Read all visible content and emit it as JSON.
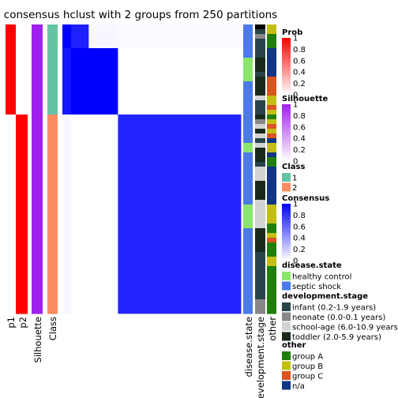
{
  "chart_data": {
    "type": "heatmap",
    "title": "consensus hclust with 2 groups from 250 partitions",
    "n_samples": 61,
    "groups": [
      {
        "class": "1",
        "count": 19
      },
      {
        "class": "2",
        "count": 42
      }
    ],
    "row_annotations": [
      {
        "label": "p1",
        "values": [
          1,
          1,
          1,
          1,
          1,
          1,
          1,
          1,
          1,
          1,
          1,
          1,
          1,
          1,
          1,
          1,
          1,
          1,
          1,
          0,
          0,
          0,
          0,
          0,
          0,
          0,
          0,
          0,
          0,
          0,
          0,
          0,
          0,
          0,
          0,
          0,
          0,
          0,
          0,
          0,
          0,
          0,
          0,
          0,
          0,
          0,
          0,
          0,
          0,
          0,
          0,
          0,
          0,
          0,
          0,
          0,
          0,
          0,
          0,
          0,
          0
        ]
      },
      {
        "label": "p2",
        "values": [
          0,
          0,
          0,
          0,
          0,
          0,
          0,
          0,
          0,
          0,
          0,
          0,
          0,
          0,
          0,
          0,
          0,
          0,
          0,
          1,
          1,
          1,
          1,
          1,
          1,
          1,
          1,
          1,
          1,
          1,
          1,
          1,
          1,
          1,
          1,
          1,
          1,
          1,
          1,
          1,
          1,
          1,
          1,
          1,
          1,
          1,
          1,
          1,
          1,
          1,
          1,
          1,
          1,
          1,
          1,
          1,
          1,
          1,
          1,
          1,
          1
        ]
      },
      {
        "label": "Silhouette",
        "values": [
          1,
          1,
          1,
          1,
          1,
          1,
          1,
          1,
          1,
          1,
          1,
          1,
          1,
          1,
          1,
          1,
          1,
          1,
          1,
          1,
          1,
          1,
          1,
          1,
          1,
          1,
          1,
          1,
          1,
          1,
          1,
          1,
          1,
          1,
          1,
          1,
          1,
          1,
          1,
          1,
          1,
          1,
          1,
          1,
          1,
          1,
          1,
          1,
          1,
          1,
          1,
          1,
          1,
          1,
          1,
          1,
          1,
          1,
          1,
          1,
          1
        ]
      },
      {
        "label": "Class",
        "values": [
          "1",
          "1",
          "1",
          "1",
          "1",
          "1",
          "1",
          "1",
          "1",
          "1",
          "1",
          "1",
          "1",
          "1",
          "1",
          "1",
          "1",
          "1",
          "1",
          "2",
          "2",
          "2",
          "2",
          "2",
          "2",
          "2",
          "2",
          "2",
          "2",
          "2",
          "2",
          "2",
          "2",
          "2",
          "2",
          "2",
          "2",
          "2",
          "2",
          "2",
          "2",
          "2",
          "2",
          "2",
          "2",
          "2",
          "2",
          "2",
          "2",
          "2",
          "2",
          "2",
          "2",
          "2",
          "2",
          "2",
          "2",
          "2",
          "2",
          "2",
          "2"
        ]
      }
    ],
    "consensus_blocks": [
      {
        "rows": [
          0,
          4
        ],
        "cols": [
          0,
          2
        ],
        "value": 1.0
      },
      {
        "rows": [
          0,
          4
        ],
        "cols": [
          3,
          8
        ],
        "value": 0.88
      },
      {
        "rows": [
          0,
          4
        ],
        "cols": [
          9,
          18
        ],
        "value": 0.03
      },
      {
        "rows": [
          0,
          4
        ],
        "cols": [
          19,
          60
        ],
        "value": 0.02
      },
      {
        "rows": [
          5,
          18
        ],
        "cols": [
          0,
          2
        ],
        "value": 0.92
      },
      {
        "rows": [
          5,
          18
        ],
        "cols": [
          3,
          8
        ],
        "value": 1.0
      },
      {
        "rows": [
          5,
          18
        ],
        "cols": [
          9,
          18
        ],
        "value": 1.0
      },
      {
        "rows": [
          5,
          18
        ],
        "cols": [
          19,
          60
        ],
        "value": 0.0
      },
      {
        "rows": [
          19,
          60
        ],
        "cols": [
          0,
          2
        ],
        "value": 0.03
      },
      {
        "rows": [
          19,
          60
        ],
        "cols": [
          3,
          18
        ],
        "value": 0.0
      },
      {
        "rows": [
          19,
          60
        ],
        "cols": [
          19,
          60
        ],
        "value": 0.86
      }
    ],
    "column_annotations": [
      {
        "label": "disease.state",
        "values": [
          "B",
          "B",
          "B",
          "B",
          "B",
          "B",
          "B",
          "G",
          "G",
          "G",
          "G",
          "G",
          "B",
          "B",
          "B",
          "B",
          "B",
          "B",
          "B",
          "B",
          "B",
          "B",
          "B",
          "B",
          "B",
          "G",
          "G",
          "B",
          "B",
          "B",
          "B",
          "B",
          "B",
          "B",
          "B",
          "B",
          "B",
          "B",
          "G",
          "G",
          "G",
          "G",
          "G",
          "B",
          "B",
          "B",
          "B",
          "B",
          "B",
          "B",
          "B",
          "B",
          "B",
          "B",
          "B",
          "B",
          "B",
          "B",
          "B",
          "B",
          "B"
        ]
      },
      {
        "label": "development.stage",
        "values": [
          "G",
          "I",
          "N",
          "I",
          "I",
          "I",
          "I",
          "T",
          "T",
          "T",
          "I",
          "T",
          "T",
          "T",
          "T",
          "S",
          "I",
          "I",
          "I",
          "T",
          "N",
          "S",
          "T",
          "S",
          "I",
          "S",
          "T",
          "T",
          "T",
          "I",
          "S",
          "S",
          "S",
          "T",
          "T",
          "T",
          "T",
          "S",
          "S",
          "S",
          "S",
          "S",
          "S",
          "T",
          "T",
          "T",
          "T",
          "T",
          "I",
          "I",
          "I",
          "I",
          "I",
          "I",
          "I",
          "I",
          "I",
          "I",
          "N",
          "N",
          "N"
        ]
      },
      {
        "label": "other",
        "values": [
          "B",
          "B",
          "A",
          "A",
          "A",
          "D",
          "D",
          "D",
          "D",
          "D",
          "D",
          "C",
          "C",
          "C",
          "C",
          "B",
          "B",
          "C",
          "B",
          "A",
          "B",
          "C",
          "B",
          "C",
          "D",
          "B",
          "B",
          "D",
          "A",
          "A",
          "D",
          "D",
          "D",
          "D",
          "D",
          "D",
          "D",
          "D",
          "B",
          "B",
          "B",
          "B",
          "A",
          "A",
          "B",
          "C",
          "A",
          "A",
          "A",
          "B",
          "B",
          "A",
          "A",
          "A",
          "A",
          "A",
          "A",
          "A",
          "A",
          "A",
          "A"
        ]
      }
    ],
    "legends": [
      {
        "title": "Prob",
        "type": "gradient",
        "colors": [
          "#ffffff",
          "#ff0000"
        ],
        "ticks": [
          "1",
          "0.8",
          "0.6",
          "0.4",
          "0.2",
          "0"
        ]
      },
      {
        "title": "Silhouette",
        "type": "gradient",
        "colors": [
          "#ffffff",
          "#a020f0"
        ],
        "ticks": [
          "1",
          "0.8",
          "0.6",
          "0.4",
          "0.2",
          "0"
        ]
      },
      {
        "title": "Class",
        "type": "categorical",
        "items": [
          {
            "label": "1",
            "color": "#66c2a5"
          },
          {
            "label": "2",
            "color": "#fc8d62"
          }
        ]
      },
      {
        "title": "Consensus",
        "type": "gradient",
        "colors": [
          "#ffffff",
          "#0000ff"
        ],
        "ticks": [
          "1",
          "0.8",
          "0.6",
          "0.4",
          "0.2",
          "0"
        ]
      },
      {
        "title": "disease.state",
        "type": "categorical",
        "items": [
          {
            "key": "G",
            "label": "healthy control",
            "color": "#8ae66a"
          },
          {
            "key": "B",
            "label": "septic shock",
            "color": "#4b7be8"
          }
        ]
      },
      {
        "title": "development.stage",
        "type": "categorical",
        "items": [
          {
            "key": "I",
            "label": "infant (0.2-1.9 years)",
            "color": "#28444a"
          },
          {
            "key": "N",
            "label": "neonate (0.0-0.1 years)",
            "color": "#878787"
          },
          {
            "key": "S",
            "label": "school-age (6.0-10.9 years)",
            "color": "#d3d3d3"
          },
          {
            "key": "T",
            "label": "toddler (2.0-5.9 years)",
            "color": "#18291c"
          }
        ]
      },
      {
        "title": "other",
        "type": "categorical",
        "items": [
          {
            "key": "A",
            "label": "group A",
            "color": "#1f7f0a"
          },
          {
            "key": "B",
            "label": "group B",
            "color": "#c4bf0a"
          },
          {
            "key": "C",
            "label": "group C",
            "color": "#d9541e"
          },
          {
            "key": "D",
            "label": "n/a",
            "color": "#103585"
          }
        ]
      }
    ]
  }
}
